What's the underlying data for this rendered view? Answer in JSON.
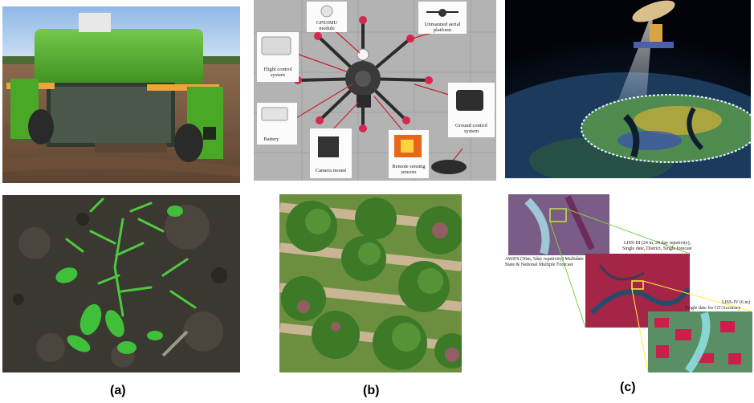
{
  "captions": {
    "a": "(a)",
    "b": "(b)",
    "c": "(c)"
  },
  "drone_labels": {
    "gps_imu": [
      "GPS/IMU",
      "module"
    ],
    "uav_platform": [
      "Unmanned aerial",
      "platform"
    ],
    "flight_control": [
      "Flight control",
      "system"
    ],
    "battery": "Battery",
    "ground_control": [
      "Ground control",
      "system"
    ],
    "camera_mount": "Camera mount",
    "remote_sensing": [
      "Remote sensing",
      "sensors"
    ]
  },
  "satellite_labels": {
    "awifs": [
      "AWiFS (56m, 5day repetivity) Multidate",
      "State & National Multiple Forecast"
    ],
    "liss3": [
      "LISS-III (24 m, 24 day repetivity),",
      "Single date, District, Single forecast"
    ],
    "liss4": [
      "LISS-IV (6 m)",
      "Single date for GT/Accuracy"
    ]
  },
  "colors": {
    "robot_green": "#5fb82a",
    "plant_green": "#3fbf3a",
    "ocean": "#1b3a5c",
    "false_color_red": "#c8204a"
  }
}
